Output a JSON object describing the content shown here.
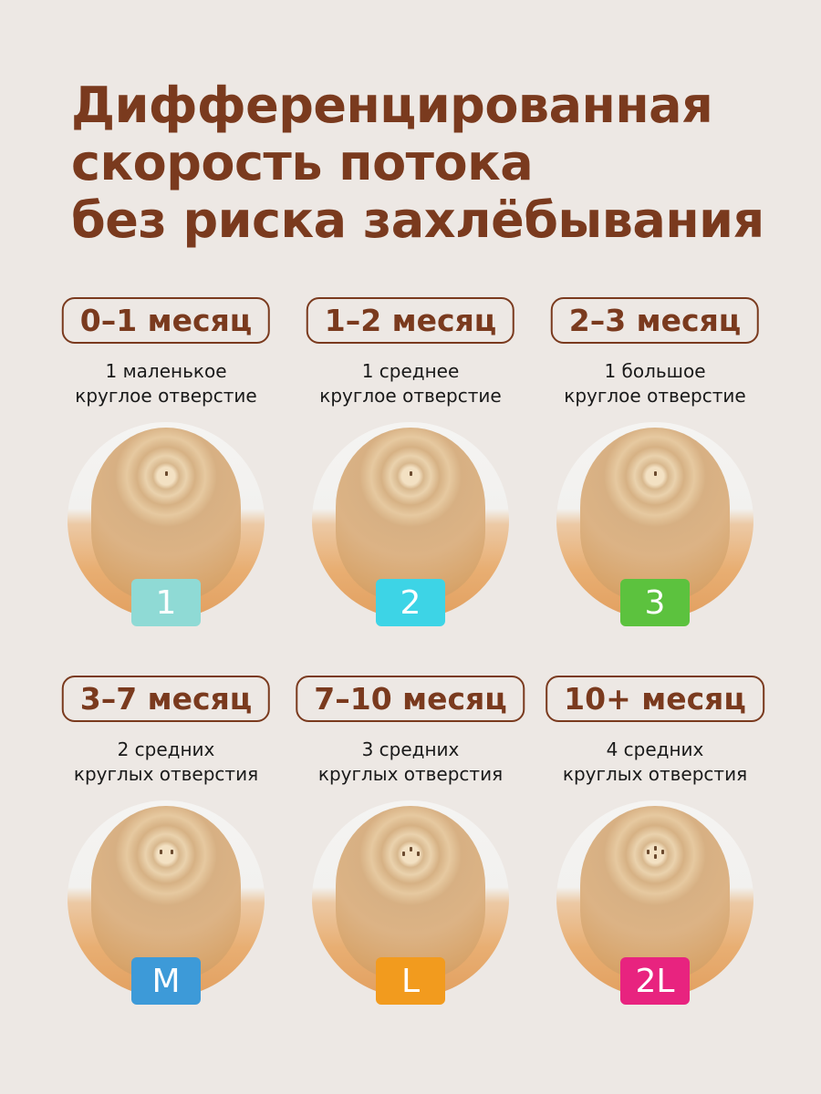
{
  "title": {
    "lines": [
      "Дифференцированная",
      "скорость потока",
      "без риска захлёбывания"
    ],
    "color": "#7a3a1e"
  },
  "items": [
    {
      "age": "0–1 месяц",
      "desc1": "1 маленькое",
      "desc2": "круглое отверстие",
      "size": "1",
      "color": "#8fdad5",
      "holes": 1
    },
    {
      "age": "1–2 месяц",
      "desc1": "1 среднее",
      "desc2": "круглое отверстие",
      "size": "2",
      "color": "#3dd4e6",
      "holes": 1
    },
    {
      "age": "2–3 месяц",
      "desc1": "1 большое",
      "desc2": "круглое отверстие",
      "size": "3",
      "color": "#5cc23e",
      "holes": 1
    },
    {
      "age": "3–7 месяц",
      "desc1": "2 средних",
      "desc2": "круглых отверстия",
      "size": "M",
      "color": "#3d9ad8",
      "holes": 2
    },
    {
      "age": "7–10 месяц",
      "desc1": "3 средних",
      "desc2": "круглых отверстия",
      "size": "L",
      "color": "#f29b1e",
      "holes": 3
    },
    {
      "age": "10+ месяц",
      "desc1": "4 средних",
      "desc2": "круглых отверстия",
      "size": "2L",
      "color": "#e8237f",
      "holes": 4
    }
  ]
}
